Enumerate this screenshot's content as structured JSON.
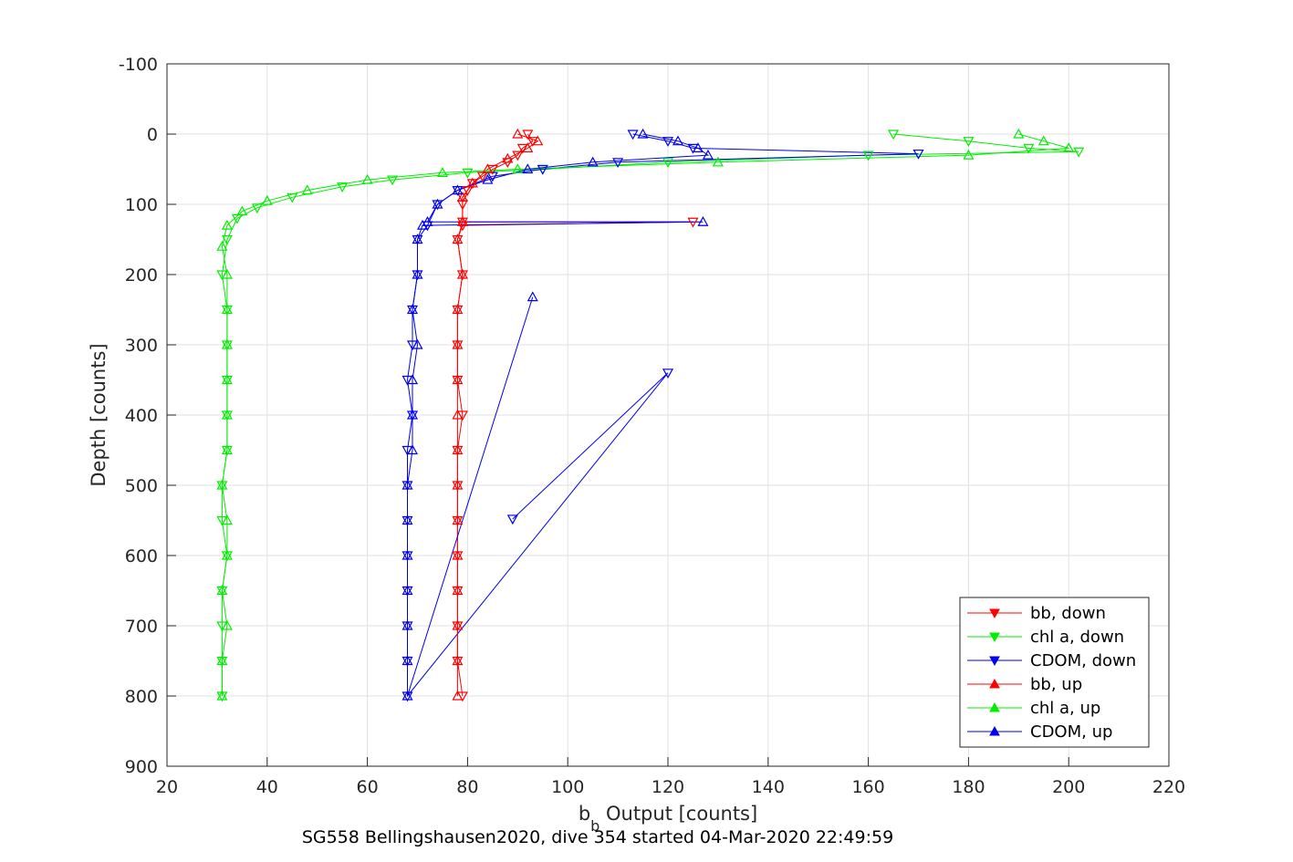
{
  "chart_data": {
    "type": "scatter",
    "xlabel": "b",
    "xlabel_sub": "b",
    "xlabel_rest": " Output [counts]",
    "ylabel": "Depth [counts]",
    "caption": "SG558 Bellingshausen2020, dive 354 started 04-Mar-2020 22:49:59",
    "xlim": [
      20,
      220
    ],
    "ylim": [
      -100,
      900
    ],
    "y_reversed": true,
    "xticks": [
      20,
      40,
      60,
      80,
      100,
      120,
      140,
      160,
      180,
      200,
      220
    ],
    "yticks": [
      -100,
      0,
      100,
      200,
      300,
      400,
      500,
      600,
      700,
      800,
      900
    ],
    "grid": true,
    "legend_position": "bottom-right",
    "series": [
      {
        "name": "bb, down",
        "color": "#ff0000",
        "marker": "triangle-down",
        "points": [
          [
            92,
            0
          ],
          [
            93,
            10
          ],
          [
            91,
            20
          ],
          [
            90,
            30
          ],
          [
            88,
            40
          ],
          [
            85,
            50
          ],
          [
            83,
            60
          ],
          [
            81,
            70
          ],
          [
            80,
            80
          ],
          [
            79,
            90
          ],
          [
            79,
            100
          ],
          [
            79,
            125
          ],
          [
            125,
            125
          ],
          [
            79,
            130
          ],
          [
            78,
            150
          ],
          [
            79,
            200
          ],
          [
            78,
            250
          ],
          [
            78,
            300
          ],
          [
            78,
            350
          ],
          [
            79,
            400
          ],
          [
            78,
            450
          ],
          [
            78,
            500
          ],
          [
            78,
            550
          ],
          [
            78,
            600
          ],
          [
            78,
            650
          ],
          [
            78,
            700
          ],
          [
            78,
            750
          ],
          [
            79,
            800
          ]
        ]
      },
      {
        "name": "chl a, down",
        "color": "#00ee00",
        "marker": "triangle-down",
        "points": [
          [
            165,
            0
          ],
          [
            180,
            10
          ],
          [
            192,
            20
          ],
          [
            202,
            25
          ],
          [
            160,
            30
          ],
          [
            120,
            40
          ],
          [
            95,
            50
          ],
          [
            80,
            55
          ],
          [
            65,
            65
          ],
          [
            55,
            75
          ],
          [
            45,
            90
          ],
          [
            38,
            105
          ],
          [
            34,
            120
          ],
          [
            32,
            150
          ],
          [
            31,
            200
          ],
          [
            32,
            250
          ],
          [
            32,
            300
          ],
          [
            32,
            350
          ],
          [
            32,
            400
          ],
          [
            32,
            450
          ],
          [
            31,
            500
          ],
          [
            31,
            550
          ],
          [
            32,
            600
          ],
          [
            31,
            650
          ],
          [
            31,
            700
          ],
          [
            31,
            750
          ],
          [
            31,
            800
          ]
        ]
      },
      {
        "name": "CDOM, down",
        "color": "#0000ee",
        "marker": "triangle-down",
        "points": [
          [
            113,
            0
          ],
          [
            120,
            10
          ],
          [
            125,
            20
          ],
          [
            170,
            28
          ],
          [
            110,
            40
          ],
          [
            95,
            50
          ],
          [
            85,
            60
          ],
          [
            78,
            80
          ],
          [
            74,
            100
          ],
          [
            72,
            130
          ],
          [
            70,
            150
          ],
          [
            70,
            200
          ],
          [
            69,
            250
          ],
          [
            69,
            300
          ],
          [
            68,
            350
          ],
          [
            69,
            400
          ],
          [
            68,
            450
          ],
          [
            68,
            500
          ],
          [
            68,
            550
          ],
          [
            68,
            600
          ],
          [
            68,
            650
          ],
          [
            68,
            700
          ],
          [
            68,
            750
          ],
          [
            68,
            800
          ],
          [
            120,
            340
          ],
          [
            89,
            548
          ]
        ]
      },
      {
        "name": "bb, up",
        "color": "#ff0000",
        "marker": "triangle-up",
        "points": [
          [
            90,
            0
          ],
          [
            94,
            10
          ],
          [
            92,
            20
          ],
          [
            88,
            35
          ],
          [
            84,
            50
          ],
          [
            81,
            70
          ],
          [
            79,
            90
          ],
          [
            79,
            125
          ],
          [
            78,
            150
          ],
          [
            79,
            200
          ],
          [
            78,
            250
          ],
          [
            78,
            300
          ],
          [
            78,
            350
          ],
          [
            78,
            400
          ],
          [
            78,
            450
          ],
          [
            78,
            500
          ],
          [
            78,
            550
          ],
          [
            78,
            600
          ],
          [
            78,
            650
          ],
          [
            78,
            700
          ],
          [
            78,
            750
          ],
          [
            78,
            800
          ]
        ]
      },
      {
        "name": "chl a, up",
        "color": "#00ee00",
        "marker": "triangle-up",
        "points": [
          [
            190,
            0
          ],
          [
            195,
            10
          ],
          [
            200,
            20
          ],
          [
            180,
            30
          ],
          [
            130,
            40
          ],
          [
            90,
            50
          ],
          [
            75,
            55
          ],
          [
            60,
            65
          ],
          [
            48,
            80
          ],
          [
            40,
            95
          ],
          [
            35,
            110
          ],
          [
            32,
            130
          ],
          [
            31,
            160
          ],
          [
            32,
            200
          ],
          [
            32,
            250
          ],
          [
            32,
            300
          ],
          [
            32,
            350
          ],
          [
            32,
            400
          ],
          [
            32,
            450
          ],
          [
            31,
            500
          ],
          [
            32,
            550
          ],
          [
            32,
            600
          ],
          [
            31,
            650
          ],
          [
            32,
            700
          ],
          [
            31,
            750
          ],
          [
            31,
            800
          ]
        ]
      },
      {
        "name": "CDOM, up",
        "color": "#0000ee",
        "marker": "triangle-up",
        "points": [
          [
            115,
            0
          ],
          [
            122,
            10
          ],
          [
            126,
            20
          ],
          [
            128,
            30
          ],
          [
            105,
            40
          ],
          [
            92,
            50
          ],
          [
            84,
            65
          ],
          [
            78,
            80
          ],
          [
            74,
            100
          ],
          [
            72,
            125
          ],
          [
            127,
            125
          ],
          [
            71,
            130
          ],
          [
            70,
            150
          ],
          [
            70,
            200
          ],
          [
            69,
            250
          ],
          [
            70,
            300
          ],
          [
            69,
            350
          ],
          [
            69,
            400
          ],
          [
            69,
            450
          ],
          [
            68,
            500
          ],
          [
            68,
            550
          ],
          [
            68,
            600
          ],
          [
            68,
            650
          ],
          [
            68,
            700
          ],
          [
            68,
            750
          ],
          [
            68,
            800
          ],
          [
            93,
            232
          ]
        ]
      }
    ]
  }
}
